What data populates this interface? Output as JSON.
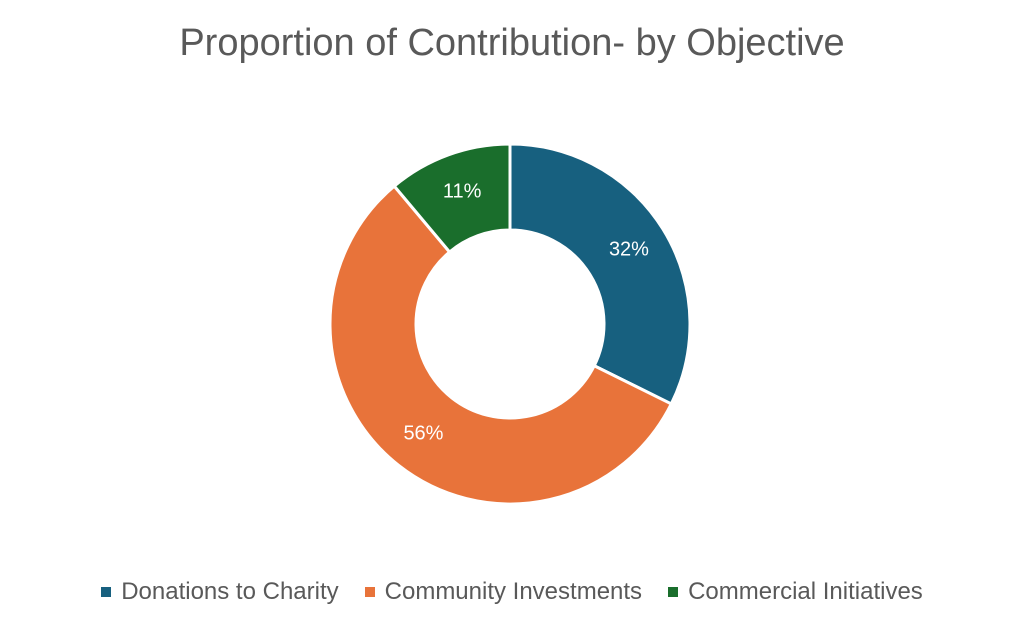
{
  "chart_data": {
    "type": "pie",
    "title": "Proportion of Contribution- by Objective",
    "categories": [
      "Donations to Charity",
      "Community Investments",
      "Commercial Initiatives"
    ],
    "values": [
      32,
      56,
      11
    ],
    "labels": [
      "32%",
      "56%",
      "11%"
    ],
    "colors": [
      "#17607f",
      "#e8733a",
      "#1a6e2c"
    ],
    "legend_position": "bottom",
    "donut": true
  }
}
